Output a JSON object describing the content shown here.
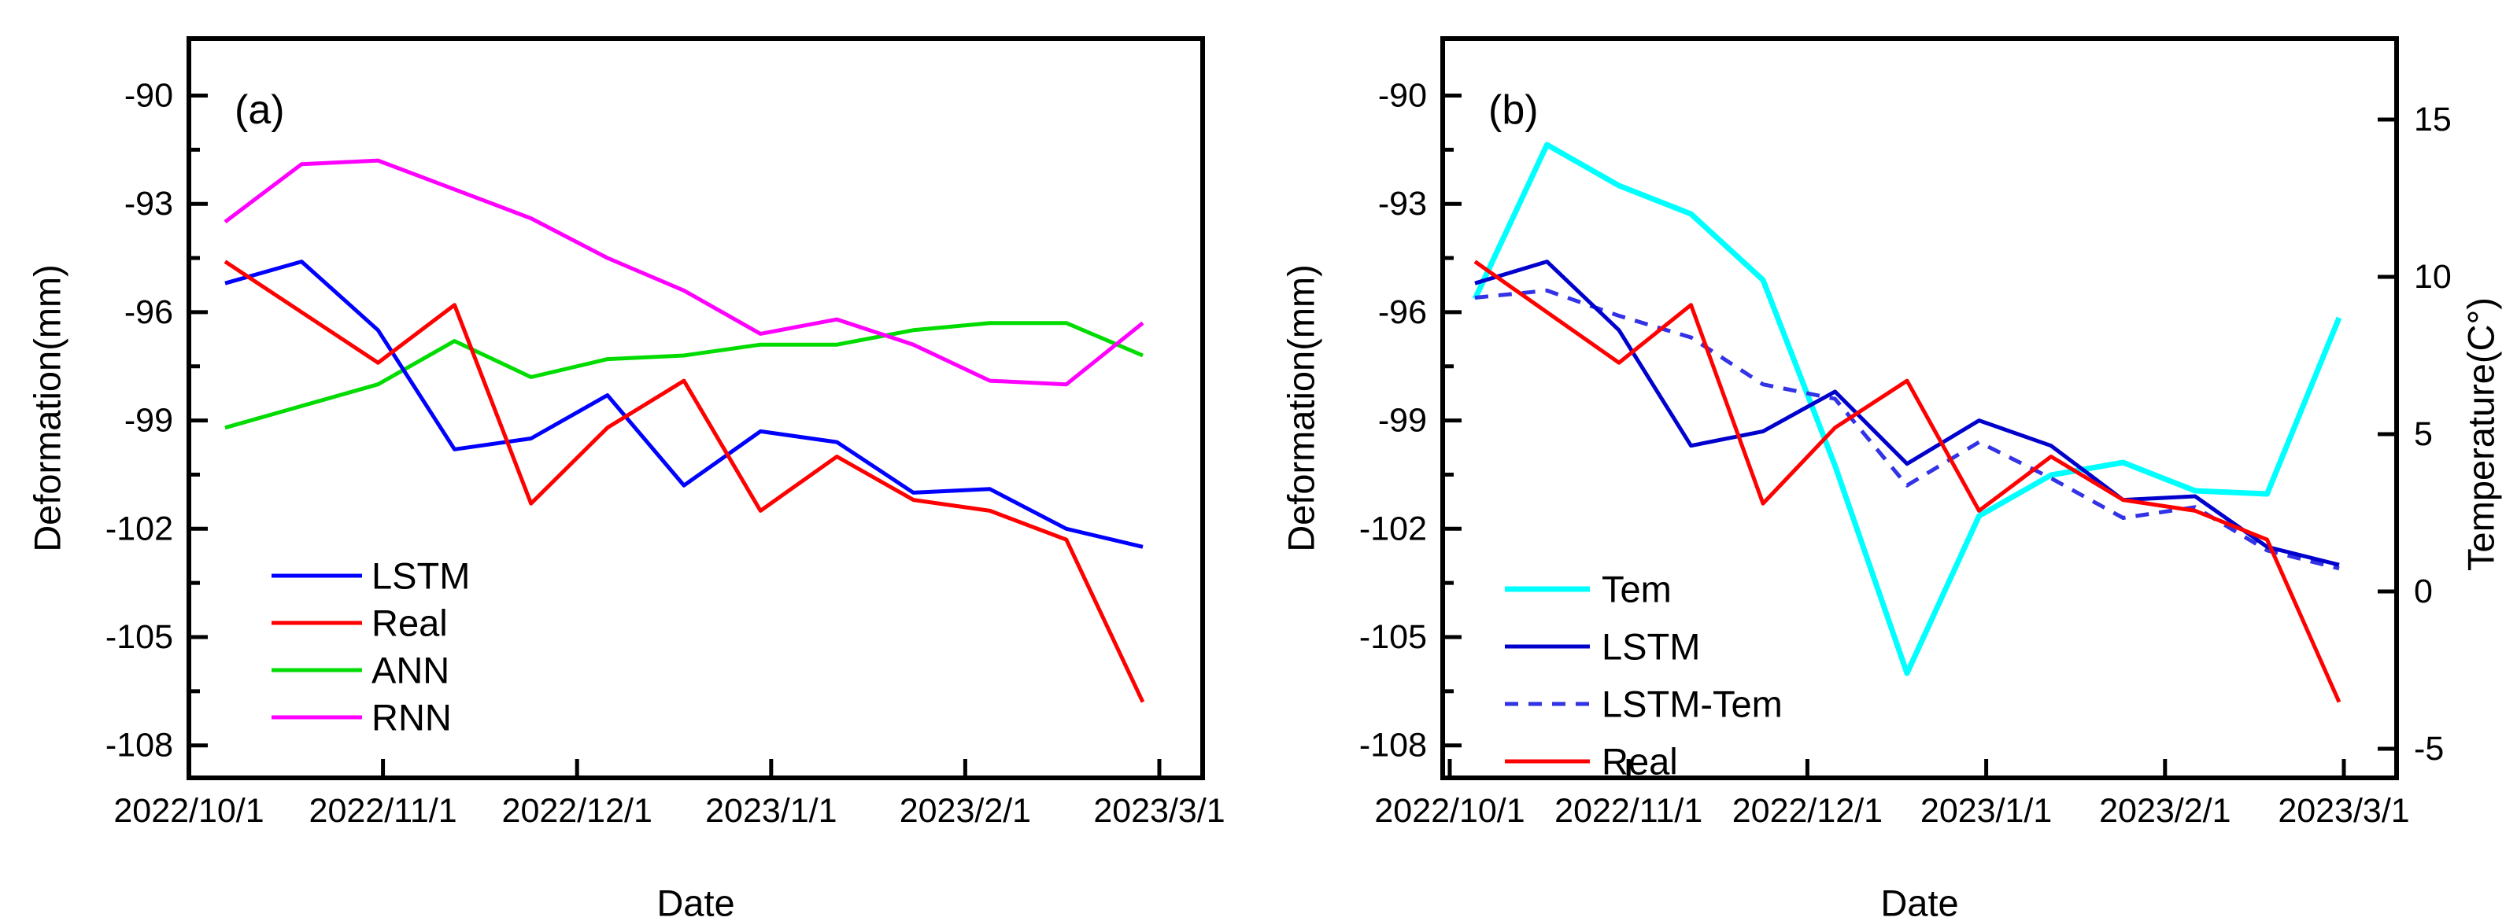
{
  "figure": {
    "background": "#ffffff",
    "text_color": "#000000",
    "panel_a_tag": "(a)",
    "panel_b_tag": "(b)"
  },
  "chart_data": [
    {
      "id": "a",
      "type": "line",
      "panel_label": "(a)",
      "xlabel": "Date",
      "ylabel": "Deformation(mm)",
      "x_tick_labels": [
        "2022/10/1",
        "2022/11/1",
        "2022/12/1",
        "2023/1/1",
        "2023/2/1",
        "2023/3/1"
      ],
      "y_ticks": [
        -90,
        -93,
        -96,
        -99,
        -102,
        -105,
        -108
      ],
      "ylim": [
        -108.9,
        -88.4
      ],
      "grid": false,
      "legend_position": "lower-center-left",
      "x_dates": [
        "2022/10/6",
        "2022/10/18",
        "2022/10/30",
        "2022/11/11",
        "2022/11/23",
        "2022/12/5",
        "2022/12/17",
        "2022/12/29",
        "2023/1/10",
        "2023/1/22",
        "2023/2/3",
        "2023/2/15",
        "2023/2/27"
      ],
      "series": [
        {
          "name": "LSTM",
          "color": "#0000ff",
          "style": "solid",
          "axis": "left",
          "values": [
            -95.2,
            -94.6,
            -96.5,
            -99.8,
            -99.5,
            -98.3,
            -100.8,
            -99.3,
            -99.6,
            -101.0,
            -100.9,
            -102.0,
            -102.5
          ]
        },
        {
          "name": "Real",
          "color": "#ff0000",
          "style": "solid",
          "axis": "left",
          "values": [
            -94.6,
            -96.0,
            -97.4,
            -95.8,
            -101.3,
            -99.2,
            -97.9,
            -101.5,
            -100.0,
            -101.2,
            -101.5,
            -102.3,
            -106.8
          ]
        },
        {
          "name": "ANN",
          "color": "#00dc00",
          "style": "solid",
          "axis": "left",
          "values": [
            -99.2,
            -98.6,
            -98.0,
            -96.8,
            -97.8,
            -97.3,
            -97.2,
            -96.9,
            -96.9,
            -96.5,
            -96.3,
            -96.3,
            -97.2
          ]
        },
        {
          "name": "RNN",
          "color": "#ff00ff",
          "style": "solid",
          "axis": "left",
          "values": [
            -93.5,
            -91.9,
            -91.8,
            -92.6,
            -93.4,
            -94.5,
            -95.4,
            -96.6,
            -96.2,
            -96.9,
            -97.9,
            -98.0,
            -96.3
          ]
        }
      ],
      "legend": [
        "LSTM",
        "Real",
        "ANN",
        "RNN"
      ]
    },
    {
      "id": "b",
      "type": "line",
      "panel_label": "(b)",
      "xlabel": "Date",
      "ylabel": "Deformation(mm)",
      "y2label": "Temperature(C°)",
      "x_tick_labels": [
        "2022/10/1",
        "2022/11/1",
        "2022/12/1",
        "2023/1/1",
        "2023/2/1",
        "2023/3/1"
      ],
      "y_ticks": [
        -90,
        -93,
        -96,
        -99,
        -102,
        -105,
        -108
      ],
      "y2_ticks": [
        15,
        10,
        5,
        0,
        -5
      ],
      "ylim": [
        -108.9,
        -88.4
      ],
      "y2lim": [
        -5.9,
        17.6
      ],
      "grid": false,
      "legend_position": "lower-center-left",
      "x_dates": [
        "2022/10/6",
        "2022/10/18",
        "2022/10/30",
        "2022/11/11",
        "2022/11/23",
        "2022/12/5",
        "2022/12/17",
        "2022/12/29",
        "2023/1/10",
        "2023/1/22",
        "2023/2/3",
        "2023/2/15",
        "2023/2/27"
      ],
      "series": [
        {
          "name": "Tem",
          "color": "#00ffff",
          "style": "solid",
          "axis": "right",
          "values": [
            9.3,
            14.2,
            12.9,
            12.0,
            9.9,
            4.0,
            -2.6,
            2.4,
            3.7,
            4.1,
            3.2,
            3.1,
            8.7
          ]
        },
        {
          "name": "LSTM",
          "color": "#0000cd",
          "style": "solid",
          "axis": "left",
          "values": [
            -95.2,
            -94.6,
            -96.5,
            -99.7,
            -99.3,
            -98.2,
            -100.2,
            -99.0,
            -99.7,
            -101.2,
            -101.1,
            -102.5,
            -103.0
          ]
        },
        {
          "name": "LSTM-Tem",
          "color": "#3232e6",
          "style": "dashed",
          "axis": "left",
          "values": [
            -95.6,
            -95.4,
            -96.1,
            -96.7,
            -98.0,
            -98.4,
            -100.8,
            -99.6,
            -100.6,
            -101.7,
            -101.4,
            -102.6,
            -103.1
          ]
        },
        {
          "name": "Real",
          "color": "#ff0000",
          "style": "solid",
          "axis": "left",
          "values": [
            -94.6,
            -96.0,
            -97.4,
            -95.8,
            -101.3,
            -99.2,
            -97.9,
            -101.5,
            -100.0,
            -101.2,
            -101.5,
            -102.3,
            -106.8
          ]
        }
      ],
      "legend": [
        "Tem",
        "LSTM",
        "LSTM-Tem",
        "Real"
      ]
    }
  ]
}
